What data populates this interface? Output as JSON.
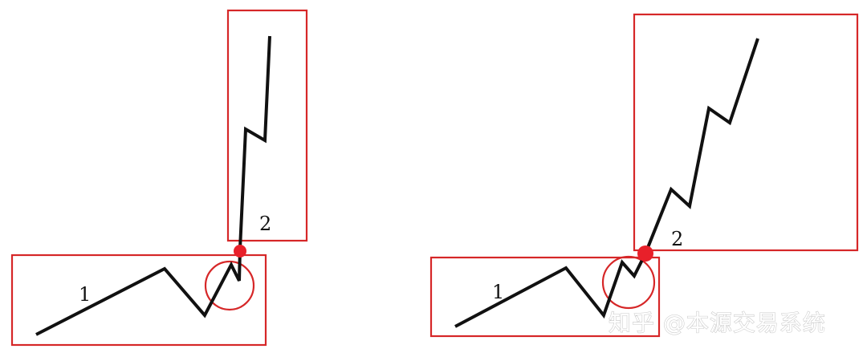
{
  "colors": {
    "box": "#d62728",
    "line": "#111111",
    "dot": "#e8202a",
    "watermark_outline": "#c8c8c8"
  },
  "left_diagram": {
    "wave1_label": "1",
    "wave2_label": "2"
  },
  "right_diagram": {
    "wave1_label": "1",
    "wave2_label": "2"
  },
  "watermark": {
    "text": "知乎 @本源交易系统"
  }
}
